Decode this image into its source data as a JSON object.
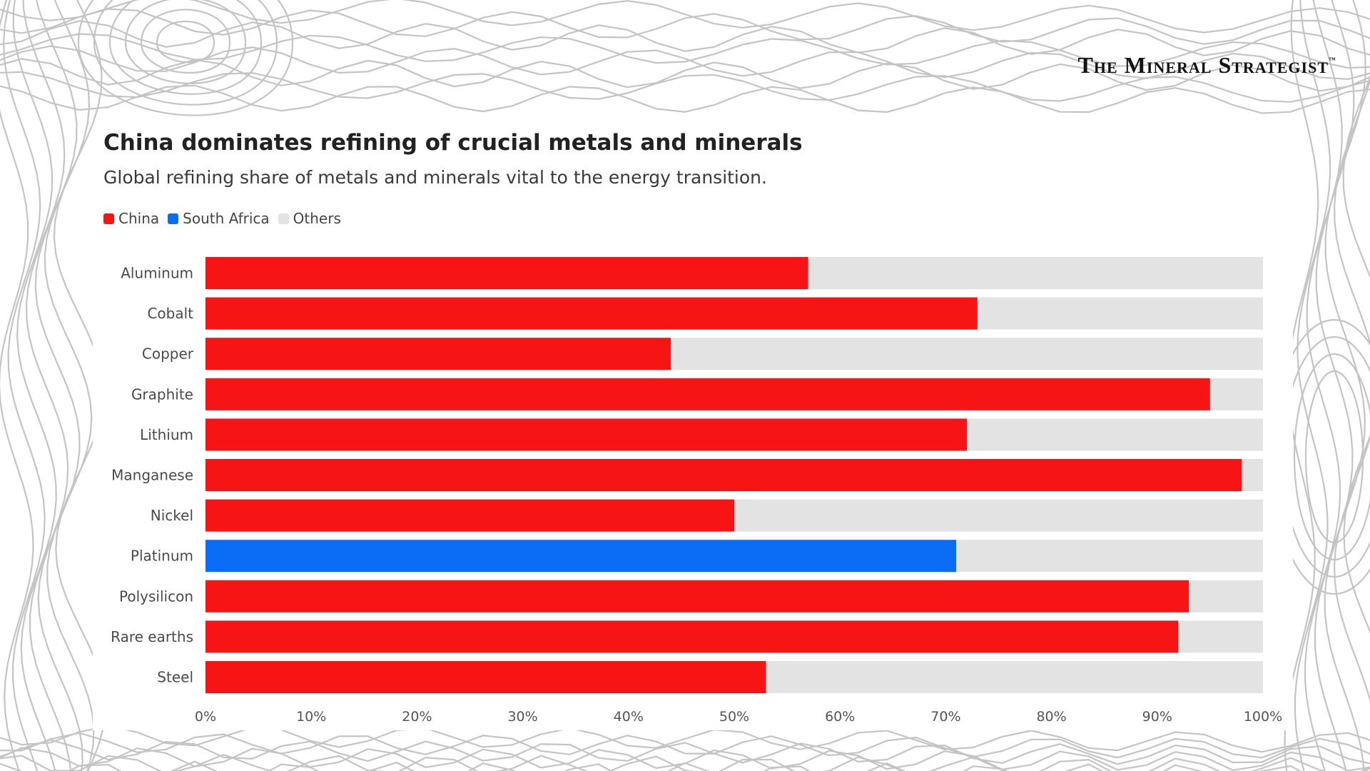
{
  "brand": {
    "name": "The Mineral Strategist",
    "trademark": "™"
  },
  "colors": {
    "china": "#f61414",
    "south_africa": "#0b6cf5",
    "others": "#e3e3e3",
    "contour": "#c4c4c4"
  },
  "chart_data": {
    "type": "bar",
    "orientation": "horizontal",
    "stacked": true,
    "title": "China dominates refining of crucial metals and minerals",
    "subtitle": "Global refining share of metals and minerals vital to the energy transition.",
    "legend": [
      {
        "name": "China",
        "color": "#f61414"
      },
      {
        "name": "South Africa",
        "color": "#0b6cf5"
      },
      {
        "name": "Others",
        "color": "#e3e3e3"
      }
    ],
    "legend_position": "top-left",
    "categories": [
      "Aluminum",
      "Cobalt",
      "Copper",
      "Graphite",
      "Lithium",
      "Manganese",
      "Nickel",
      "Platinum",
      "Polysilicon",
      "Rare earths",
      "Steel"
    ],
    "series": [
      {
        "name": "China",
        "values": [
          57,
          73,
          44,
          95,
          72,
          98,
          50,
          0,
          93,
          92,
          53
        ]
      },
      {
        "name": "South Africa",
        "values": [
          0,
          0,
          0,
          0,
          0,
          0,
          0,
          71,
          0,
          0,
          0
        ]
      },
      {
        "name": "Others",
        "values": [
          43,
          27,
          56,
          5,
          28,
          2,
          50,
          29,
          7,
          8,
          47
        ]
      }
    ],
    "xlim": [
      0,
      100
    ],
    "x_ticks": [
      "0%",
      "10%",
      "20%",
      "30%",
      "40%",
      "50%",
      "60%",
      "70%",
      "80%",
      "90%",
      "100%"
    ],
    "grid": false
  }
}
